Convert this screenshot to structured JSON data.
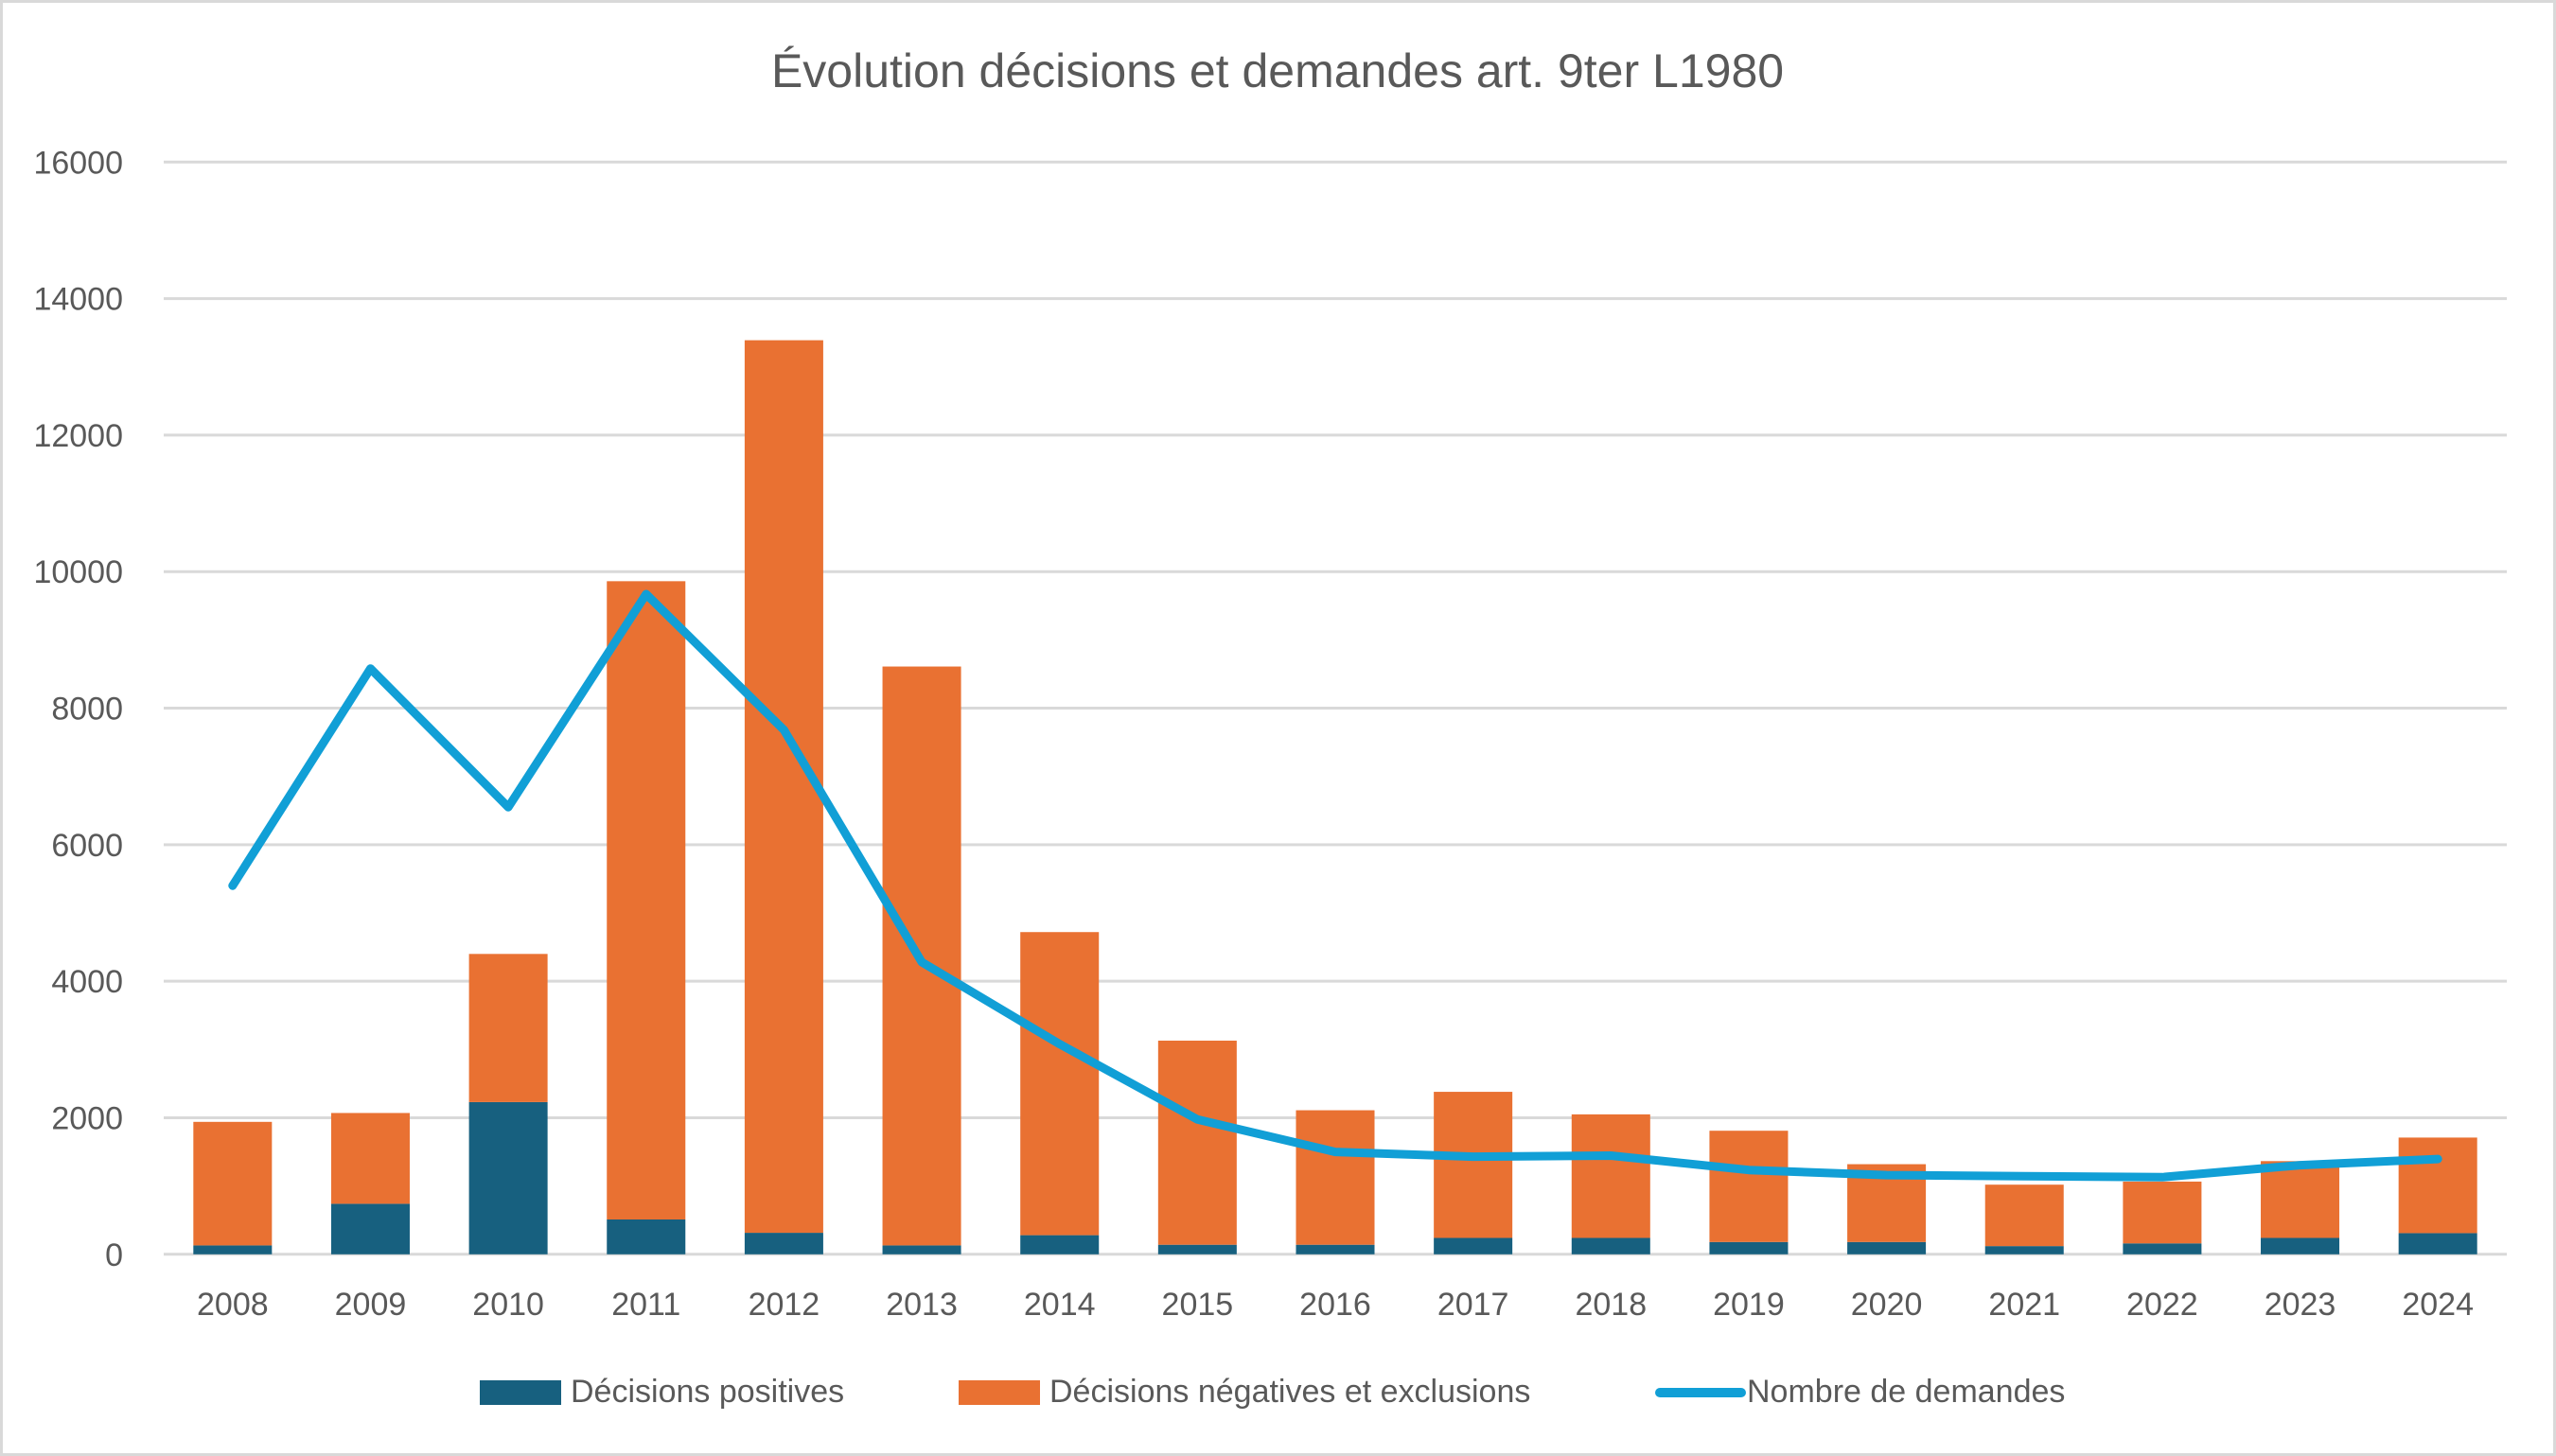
{
  "chart_data": {
    "type": "bar",
    "subtype": "stacked-bar-with-line",
    "title": "Évolution décisions et demandes art. 9ter L1980",
    "xlabel": "",
    "ylabel": "",
    "ylim": [
      0,
      16000
    ],
    "yticks": [
      0,
      2000,
      4000,
      6000,
      8000,
      10000,
      12000,
      14000,
      16000
    ],
    "grid": true,
    "legend_position": "bottom",
    "categories": [
      "2008",
      "2009",
      "2010",
      "2011",
      "2012",
      "2013",
      "2014",
      "2015",
      "2016",
      "2017",
      "2018",
      "2019",
      "2020",
      "2021",
      "2022",
      "2023",
      "2024"
    ],
    "series": [
      {
        "name": "Décisions positives",
        "kind": "bar",
        "stack": "decisions",
        "color": "#17607f",
        "values": [
          130,
          740,
          2230,
          510,
          315,
          130,
          280,
          140,
          140,
          240,
          240,
          180,
          180,
          120,
          160,
          240,
          310
        ]
      },
      {
        "name": "Décisions négatives et exclusions",
        "kind": "bar",
        "stack": "decisions",
        "color": "#e97132",
        "values": [
          1810,
          1330,
          2170,
          9350,
          13075,
          8480,
          4440,
          2990,
          1970,
          2140,
          1810,
          1630,
          1140,
          900,
          905,
          1125,
          1400
        ]
      },
      {
        "name": "Nombre de demandes",
        "kind": "line",
        "color": "#119fd6",
        "values": [
          5400,
          8580,
          6550,
          9670,
          7680,
          4280,
          3080,
          1975,
          1500,
          1430,
          1445,
          1235,
          1160,
          1145,
          1130,
          1305,
          1395
        ]
      }
    ]
  },
  "colors": {
    "text": "#595959",
    "grid": "#d9d9d9",
    "border": "#d9d9d9"
  }
}
